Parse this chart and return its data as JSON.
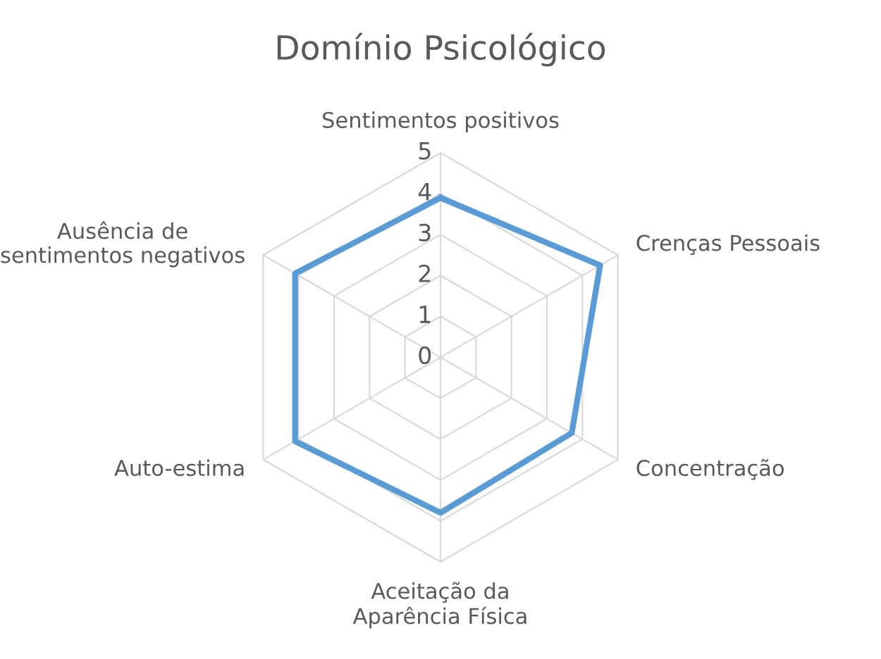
{
  "chart_data": {
    "type": "radar",
    "title": "Domínio Psicológico",
    "categories": [
      "Sentimentos positivos",
      "Crenças Pessoais",
      "Concentração",
      "Aceitação da\nAparência Física",
      "Auto-estima",
      "Ausência de\nsentimentos negativos"
    ],
    "series": [
      {
        "color": "#5b9bd5",
        "values": [
          3.9,
          4.5,
          3.7,
          3.8,
          4.1,
          4.1
        ]
      }
    ],
    "ylim": [
      0,
      5
    ],
    "yticks": [
      0,
      1,
      2,
      3,
      4,
      5
    ],
    "grid": true,
    "legend": false
  }
}
